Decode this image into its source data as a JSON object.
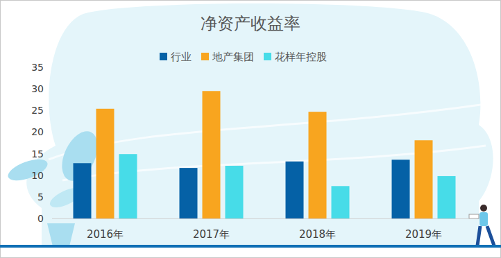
{
  "chart_data": {
    "type": "bar",
    "title": "净资产收益率",
    "categories": [
      "2016年",
      "2017年",
      "2018年",
      "2019年"
    ],
    "series": [
      {
        "name": "行业",
        "color": "#0561a6",
        "values": [
          12.8,
          11.7,
          13.2,
          13.6
        ]
      },
      {
        "name": "地产集团",
        "color": "#f8a51f",
        "values": [
          25.4,
          29.5,
          24.7,
          18.1
        ]
      },
      {
        "name": "花样年控股",
        "color": "#47dce8",
        "values": [
          14.9,
          12.2,
          7.5,
          9.8
        ]
      }
    ],
    "ylim": [
      0,
      35
    ],
    "yticks": [
      0,
      5,
      10,
      15,
      20,
      25,
      30,
      35
    ],
    "grid": false,
    "legend": "top"
  }
}
